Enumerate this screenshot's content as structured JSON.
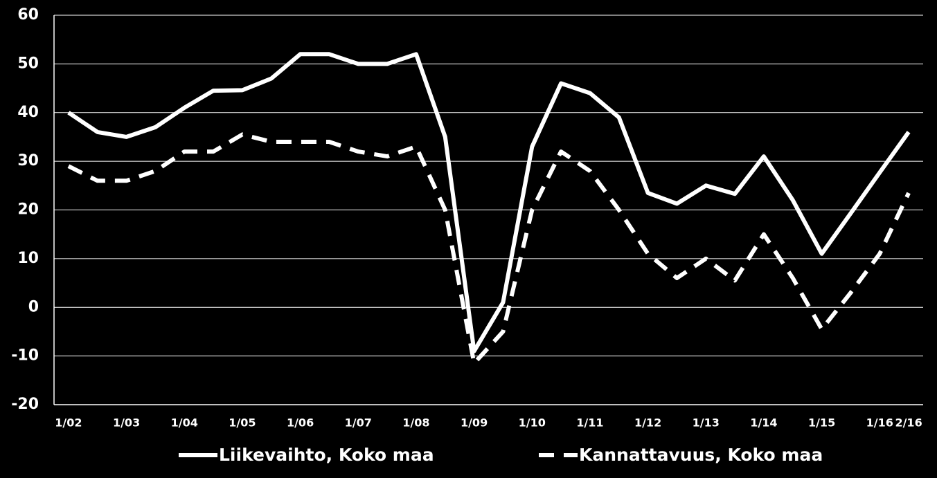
{
  "chart_data": {
    "type": "line",
    "categories": [
      "1/02",
      null,
      "1/03",
      null,
      "1/04",
      null,
      "1/05",
      null,
      "1/06",
      null,
      "1/07",
      null,
      "1/08",
      null,
      "1/09",
      null,
      "1/10",
      null,
      "1/11",
      null,
      "1/12",
      null,
      "1/13",
      null,
      "1/14",
      null,
      "1/15",
      null,
      "1/16",
      "2/16"
    ],
    "series": [
      {
        "name": "Liikevaihto, Koko maa",
        "color": "#ffffff",
        "dash": false,
        "values": [
          40,
          36,
          35,
          37,
          41,
          44.5,
          44.6,
          47,
          52,
          52,
          50,
          50,
          52,
          35,
          -9,
          1,
          33,
          46,
          44,
          39,
          23.5,
          21.3,
          25,
          23.3,
          31,
          22,
          11,
          19.3,
          27.7,
          36
        ]
      },
      {
        "name": "Kannattavuus, Koko maa",
        "color": "#ffffff",
        "dash": true,
        "values": [
          29,
          26,
          26,
          28,
          32,
          32,
          35.5,
          34,
          34,
          34,
          32,
          31,
          33,
          20,
          -11.5,
          -5,
          20,
          32,
          28,
          20,
          11,
          6,
          10,
          5.5,
          15,
          6,
          -4.5,
          3,
          11,
          23.5
        ]
      }
    ],
    "ylim": [
      -20,
      60
    ],
    "yticks": [
      -20,
      -10,
      0,
      10,
      20,
      30,
      40,
      50,
      60
    ],
    "grid": true
  }
}
